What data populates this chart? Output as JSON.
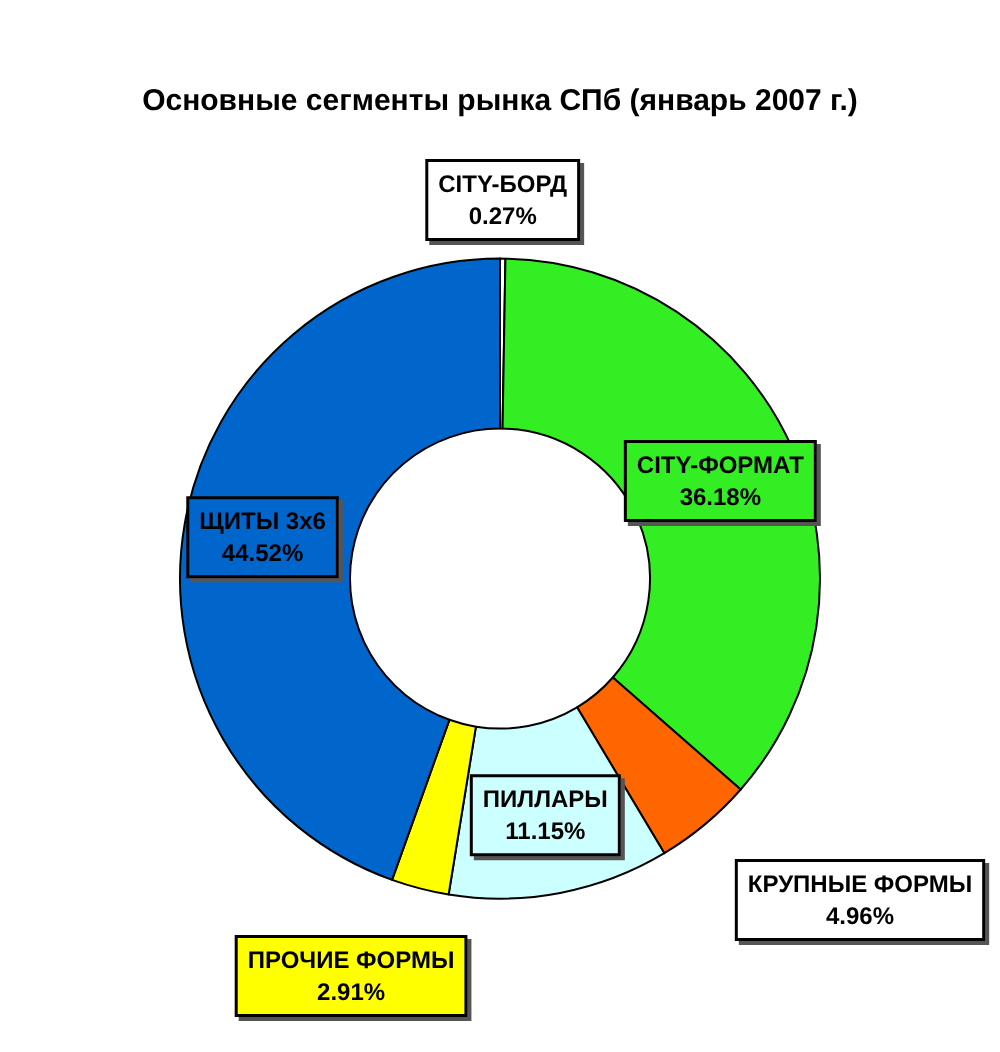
{
  "chart_data": {
    "type": "donut",
    "title": "Основные сегменты рынка СПб (январь 2007 г.)",
    "categories": [
      "CITY-БОРД",
      "CITY-ФОРМАТ",
      "КРУПНЫЕ ФОРМЫ",
      "ПИЛЛАРЫ",
      "ПРОЧИЕ ФОРМЫ",
      "ЩИТЫ 3х6"
    ],
    "values": [
      0.27,
      36.18,
      4.96,
      11.15,
      2.91,
      44.52
    ],
    "colors": [
      "#ffffff",
      "#33ee22",
      "#ff6600",
      "#ccffff",
      "#ffff00",
      "#0066cc"
    ],
    "value_labels": [
      "0.27%",
      "36.18%",
      "4.96%",
      "11.15%",
      "2.91%",
      "44.52%"
    ],
    "legend": false
  }
}
